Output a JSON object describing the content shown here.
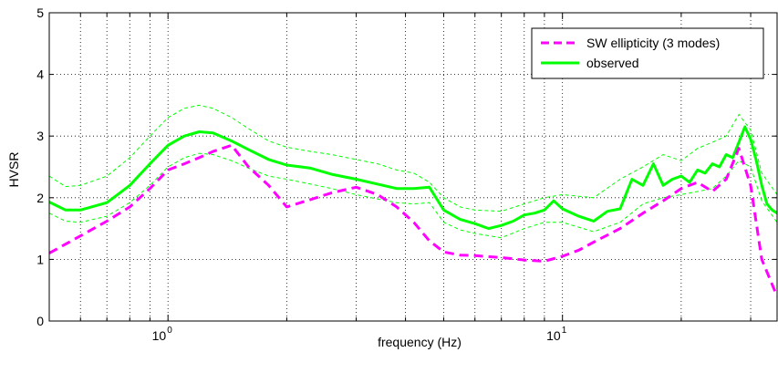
{
  "chart_data": {
    "type": "line",
    "title": "",
    "xlabel": "frequency (Hz)",
    "ylabel": "HVSR",
    "xscale": "log",
    "xlim": [
      0.5,
      35
    ],
    "ylim": [
      0,
      5
    ],
    "grid": true,
    "legend_position": "top-right",
    "x_tick_labels": [
      {
        "value": 1,
        "base": "10",
        "exp": "0"
      },
      {
        "value": 10,
        "base": "10",
        "exp": "1"
      }
    ],
    "y_tick_labels": [
      "0",
      "1",
      "2",
      "3",
      "4",
      "5"
    ],
    "series": [
      {
        "name": "SW ellipticity (3 modes)",
        "color": "#ff00ff",
        "style": "dashed",
        "x": [
          0.5,
          0.6,
          0.7,
          0.8,
          0.9,
          1.0,
          1.1,
          1.2,
          1.3,
          1.45,
          1.6,
          1.8,
          2.0,
          2.3,
          2.6,
          3.0,
          3.4,
          3.8,
          4.2,
          4.6,
          5.0,
          5.5,
          6.0,
          7.0,
          8.0,
          9.0,
          10.0,
          11.0,
          12.0,
          14.0,
          16.0,
          18.0,
          20.0,
          22.0,
          24.0,
          26.0,
          28.0,
          30.0,
          32.0,
          35.0
        ],
        "values": [
          1.1,
          1.38,
          1.62,
          1.85,
          2.15,
          2.45,
          2.55,
          2.65,
          2.75,
          2.85,
          2.5,
          2.2,
          1.85,
          1.97,
          2.08,
          2.17,
          2.05,
          1.85,
          1.6,
          1.3,
          1.12,
          1.07,
          1.06,
          1.03,
          0.99,
          0.97,
          1.05,
          1.15,
          1.28,
          1.5,
          1.75,
          1.95,
          2.15,
          2.25,
          2.1,
          2.3,
          2.8,
          2.2,
          1.0,
          0.4
        ]
      },
      {
        "name": "observed",
        "color": "#00ff00",
        "style": "solid",
        "x": [
          0.5,
          0.55,
          0.6,
          0.7,
          0.8,
          0.9,
          1.0,
          1.1,
          1.2,
          1.3,
          1.45,
          1.6,
          1.8,
          2.0,
          2.3,
          2.6,
          3.0,
          3.4,
          3.8,
          4.2,
          4.6,
          5.0,
          5.5,
          6.0,
          6.5,
          7.0,
          7.5,
          8.0,
          8.5,
          9.0,
          9.5,
          10.0,
          11.0,
          12.0,
          13.0,
          14.0,
          15.0,
          16.0,
          17.0,
          18.0,
          19.0,
          20.0,
          21.0,
          22.0,
          23.0,
          24.0,
          25.0,
          26.0,
          27.0,
          28.0,
          29.0,
          30.0,
          31.0,
          32.0,
          33.0,
          34.0,
          35.0
        ],
        "values": [
          1.93,
          1.8,
          1.8,
          1.92,
          2.2,
          2.55,
          2.85,
          3.0,
          3.07,
          3.05,
          2.92,
          2.78,
          2.62,
          2.53,
          2.48,
          2.38,
          2.3,
          2.22,
          2.15,
          2.15,
          2.17,
          1.8,
          1.65,
          1.58,
          1.5,
          1.55,
          1.62,
          1.72,
          1.75,
          1.8,
          1.95,
          1.82,
          1.7,
          1.62,
          1.78,
          1.82,
          2.3,
          2.2,
          2.55,
          2.2,
          2.3,
          2.35,
          2.25,
          2.45,
          2.4,
          2.55,
          2.5,
          2.7,
          2.65,
          2.9,
          3.15,
          2.95,
          2.6,
          2.2,
          1.9,
          1.8,
          1.75
        ]
      },
      {
        "name": "observed +/- std",
        "color": "#00ff00",
        "style": "thin-dashed",
        "legend": false,
        "x": [
          0.5,
          0.55,
          0.6,
          0.7,
          0.8,
          0.9,
          1.0,
          1.1,
          1.2,
          1.3,
          1.45,
          1.6,
          1.8,
          2.0,
          2.3,
          2.6,
          3.0,
          3.4,
          3.8,
          4.2,
          4.6,
          5.0,
          5.5,
          6.0,
          7.0,
          8.0,
          9.0,
          10.0,
          12.0,
          14.0,
          16.0,
          18.0,
          20.0,
          22.0,
          24.0,
          26.0,
          28.0,
          30.0,
          32.0,
          35.0
        ],
        "upper": [
          2.35,
          2.18,
          2.2,
          2.35,
          2.65,
          3.0,
          3.3,
          3.45,
          3.5,
          3.45,
          3.3,
          3.12,
          2.92,
          2.82,
          2.75,
          2.7,
          2.62,
          2.55,
          2.45,
          2.4,
          2.25,
          2.0,
          1.85,
          1.8,
          1.78,
          1.9,
          2.0,
          2.05,
          2.0,
          2.3,
          2.5,
          2.7,
          2.6,
          2.8,
          2.9,
          3.0,
          3.35,
          3.1,
          2.4,
          2.05
        ],
        "lower": [
          1.75,
          1.62,
          1.6,
          1.7,
          1.92,
          2.2,
          2.5,
          2.65,
          2.72,
          2.7,
          2.6,
          2.48,
          2.35,
          2.3,
          2.22,
          2.15,
          2.05,
          1.98,
          1.92,
          1.9,
          1.92,
          1.6,
          1.48,
          1.42,
          1.35,
          1.5,
          1.6,
          1.6,
          1.45,
          1.6,
          1.9,
          2.0,
          2.05,
          2.1,
          2.15,
          2.35,
          2.6,
          2.5,
          1.95,
          1.6
        ]
      }
    ]
  }
}
